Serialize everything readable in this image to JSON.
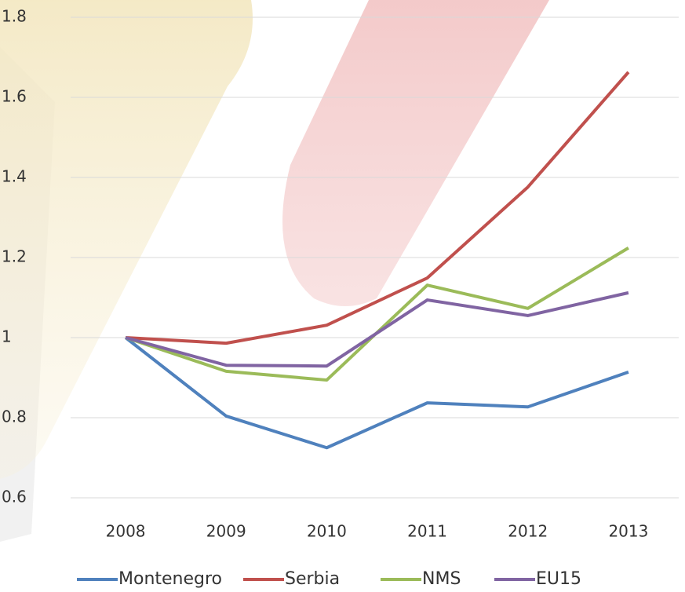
{
  "chart_data": {
    "type": "line",
    "categories": [
      "2008",
      "2009",
      "2010",
      "2011",
      "2012",
      "2013"
    ],
    "series": [
      {
        "name": "Montenegro",
        "color": "#4f81bd",
        "values": [
          1,
          0.804,
          0.725,
          0.837,
          0.827,
          0.914
        ]
      },
      {
        "name": "Serbia",
        "color": "#c0504d",
        "values": [
          1,
          0.986,
          1.031,
          1.149,
          1.376,
          1.663
        ]
      },
      {
        "name": "NMS",
        "color": "#9bbb59",
        "values": [
          1,
          0.916,
          0.894,
          1.131,
          1.073,
          1.224
        ]
      },
      {
        "name": "EU15",
        "color": "#8064a2",
        "values": [
          1,
          0.931,
          0.929,
          1.094,
          1.055,
          1.112
        ]
      }
    ],
    "ylim": [
      0.6,
      1.8
    ],
    "yticks": [
      0.6,
      0.8,
      1,
      1.2,
      1.4,
      1.6,
      1.8
    ],
    "grid": true,
    "legend": "bottom"
  }
}
